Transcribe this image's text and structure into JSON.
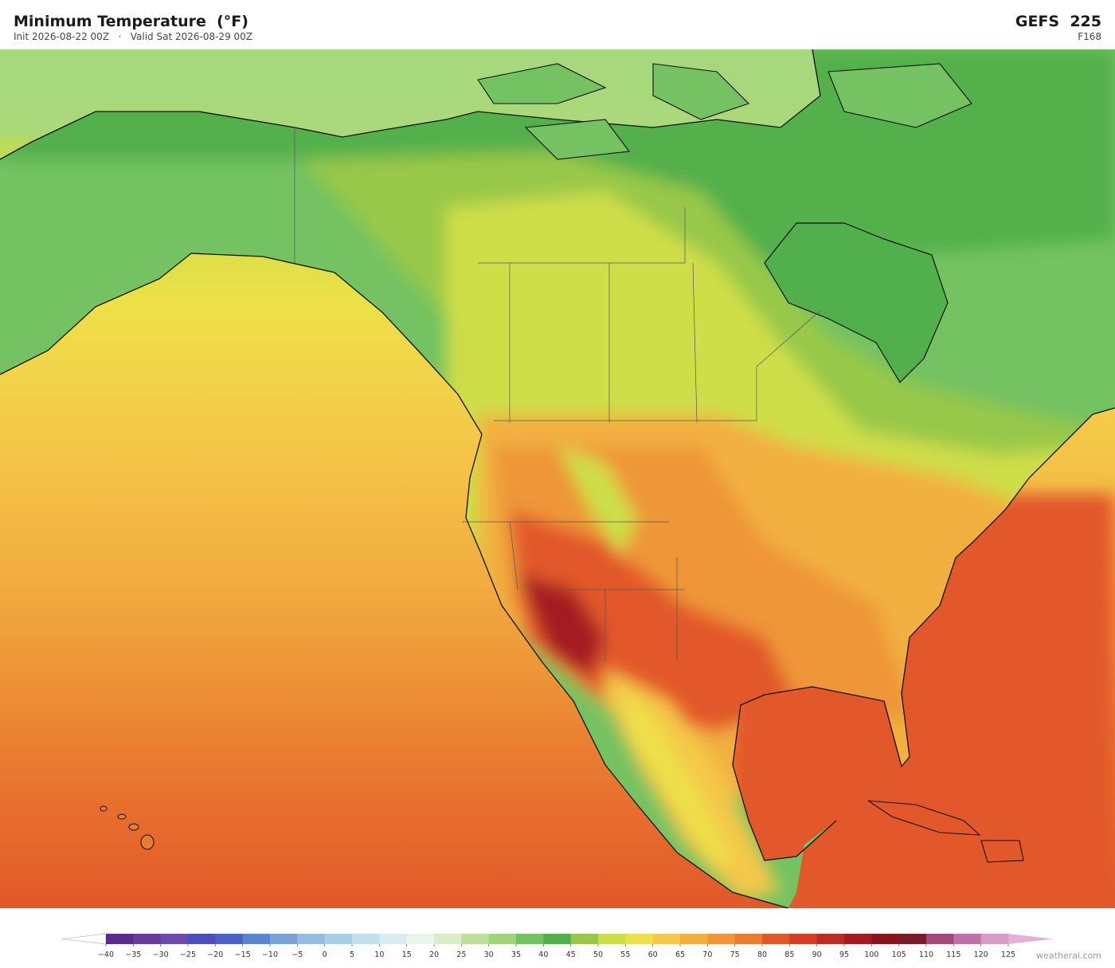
{
  "header": {
    "title": "Minimum Temperature  (°F)",
    "subtitle": "Init 2026-08-22 00Z   ·   Valid Sat 2026-08-29 00Z",
    "model": "GEFS  225",
    "forecast_hour": "F168"
  },
  "colorbar": {
    "ticks": [
      {
        "value": -40,
        "label": "−40"
      },
      {
        "value": -35,
        "label": "−35"
      },
      {
        "value": -30,
        "label": "−30"
      },
      {
        "value": -25,
        "label": "−25"
      },
      {
        "value": -20,
        "label": "−20"
      },
      {
        "value": -15,
        "label": "−15"
      },
      {
        "value": -10,
        "label": "−10"
      },
      {
        "value": -5,
        "label": "−5"
      },
      0,
      5,
      10,
      15,
      20,
      25,
      30,
      35,
      40,
      45,
      50,
      55,
      60,
      65,
      70,
      75,
      80,
      85,
      90,
      95,
      100,
      105,
      110,
      115,
      120,
      125
    ],
    "colors": [
      "#5b2a8e",
      "#6a3a9e",
      "#6e4aac",
      "#4e4ebe",
      "#4a62c8",
      "#5a84d0",
      "#78a2d8",
      "#94bce0",
      "#a8cfe8",
      "#c2e0ee",
      "#d8ecf2",
      "#e8f4ec",
      "#d8eec8",
      "#bce09a",
      "#9ed47c",
      "#74c262",
      "#52b04c",
      "#98c84a",
      "#cede48",
      "#eee048",
      "#f4c848",
      "#f2b040",
      "#ee9638",
      "#ea7c30",
      "#e2582a",
      "#d63c26",
      "#c02a24",
      "#a41c20",
      "#8a141c",
      "#7a1a2a",
      "#a4487c",
      "#c070a8",
      "#d89ccc"
    ],
    "under_color": "#ffffff",
    "over_color": "#e4b0da"
  },
  "watermark": "weatherai.com"
}
